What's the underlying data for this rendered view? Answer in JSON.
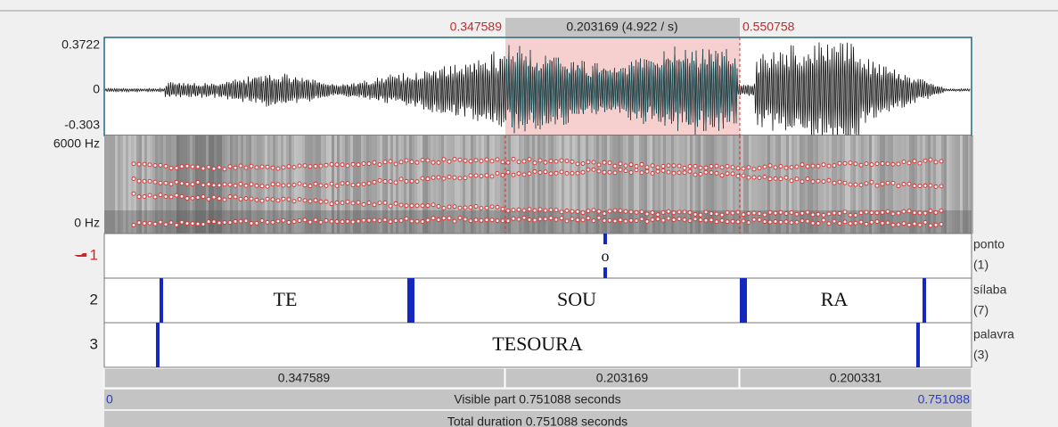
{
  "selection": {
    "start": "0.347589",
    "duration": "0.203169 (4.922 / s)",
    "end": "0.550758"
  },
  "waveform": {
    "max": "0.3722",
    "zero": "0",
    "min": "-0.303"
  },
  "spectrogram": {
    "max": "6000 Hz",
    "min": "0 Hz"
  },
  "tiers": [
    {
      "number": "1",
      "name": "ponto",
      "count": "(1)",
      "labels": [
        "o"
      ]
    },
    {
      "number": "2",
      "name": "sílaba",
      "count": "(7)",
      "labels": [
        "TE",
        "SOU",
        "RA"
      ]
    },
    {
      "number": "3",
      "name": "palavra",
      "count": "(3)",
      "labels": [
        "TESOURA"
      ]
    }
  ],
  "durations": [
    "0.347589",
    "0.203169",
    "0.200331"
  ],
  "visible": {
    "start": "0",
    "text": "Visible part 0.751088 seconds",
    "end": "0.751088"
  },
  "total": "Total duration 0.751088 seconds"
}
